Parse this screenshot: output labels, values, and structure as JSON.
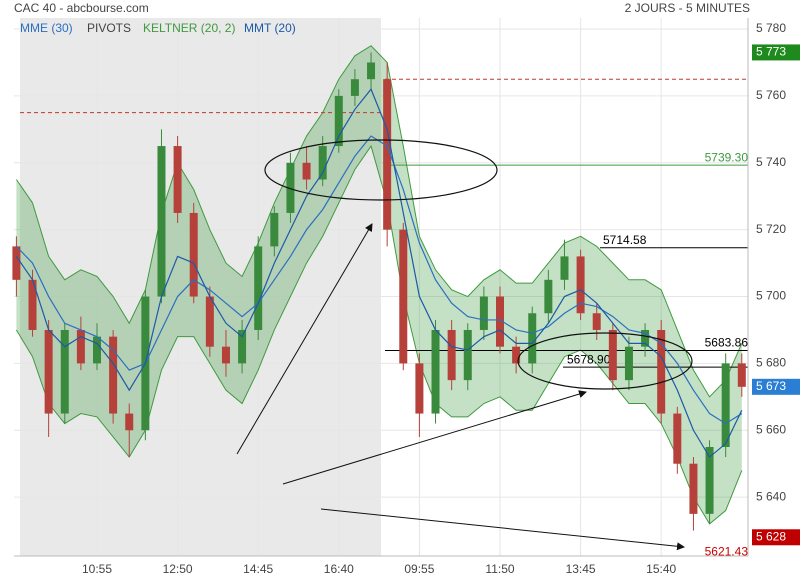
{
  "chart_data": {
    "type": "candlestick",
    "title": "CAC 40 - abcbourse.com",
    "subtitle": "2 JOURS - 5 MINUTES",
    "pivots_label": "PIVOTS",
    "categories": [
      null,
      null,
      null,
      null,
      null,
      "10:55",
      null,
      null,
      null,
      null,
      "12:50",
      null,
      null,
      null,
      null,
      "14:45",
      null,
      null,
      null,
      null,
      "16:40",
      null,
      null,
      null,
      null,
      "09:55",
      null,
      null,
      null,
      null,
      "11:50",
      null,
      null,
      null,
      null,
      "13:45",
      null,
      null,
      null,
      null,
      "15:40",
      null,
      null,
      null,
      null,
      null
    ],
    "open": [
      5715,
      5705,
      5690,
      5665,
      5690,
      5680,
      5688,
      5665,
      5660,
      5700,
      5745,
      5725,
      5700,
      5685,
      5680,
      5690,
      5715,
      5725,
      5740,
      5735,
      5745,
      5760,
      5765,
      5765,
      5720,
      5680,
      5665,
      5690,
      5675,
      5690,
      5700,
      5685,
      5680,
      5695,
      5705,
      5712,
      5695,
      5690,
      5675,
      5685,
      5690,
      5665,
      5650,
      5635,
      5655,
      5680
    ],
    "high": [
      5718,
      5708,
      5693,
      5692,
      5694,
      5692,
      5690,
      5668,
      5702,
      5750,
      5748,
      5728,
      5703,
      5690,
      5693,
      5718,
      5727,
      5743,
      5745,
      5748,
      5762,
      5768,
      5773,
      5770,
      5722,
      5683,
      5693,
      5693,
      5692,
      5703,
      5703,
      5688,
      5697,
      5708,
      5717,
      5714,
      5698,
      5692,
      5688,
      5692,
      5693,
      5667,
      5652,
      5657,
      5683,
      5683
    ],
    "low": [
      5700,
      5688,
      5658,
      5662,
      5678,
      5678,
      5662,
      5652,
      5657,
      5698,
      5722,
      5698,
      5682,
      5676,
      5677,
      5687,
      5712,
      5722,
      5732,
      5733,
      5743,
      5757,
      5762,
      5715,
      5678,
      5658,
      5662,
      5672,
      5672,
      5687,
      5683,
      5677,
      5677,
      5692,
      5702,
      5693,
      5687,
      5672,
      5672,
      5682,
      5662,
      5647,
      5630,
      5632,
      5652,
      5670
    ],
    "close": [
      5705,
      5690,
      5665,
      5690,
      5680,
      5688,
      5665,
      5660,
      5700,
      5745,
      5725,
      5700,
      5685,
      5680,
      5690,
      5715,
      5725,
      5740,
      5735,
      5745,
      5760,
      5765,
      5770,
      5720,
      5680,
      5665,
      5690,
      5675,
      5690,
      5700,
      5685,
      5680,
      5695,
      5705,
      5712,
      5695,
      5690,
      5675,
      5685,
      5690,
      5665,
      5650,
      5635,
      5655,
      5680,
      5673
    ],
    "up_color": "#3a8a3e",
    "down_color": "#b5413a",
    "series": [
      {
        "name": "MME (30)",
        "color": "#2a6fc0",
        "values": [
          5715,
          5710,
          5700,
          5692,
          5690,
          5688,
          5684,
          5678,
          5680,
          5690,
          5700,
          5705,
          5702,
          5698,
          5694,
          5698,
          5705,
          5712,
          5720,
          5726,
          5734,
          5742,
          5748,
          5745,
          5732,
          5716,
          5705,
          5698,
          5694,
          5693,
          5693,
          5690,
          5689,
          5691,
          5695,
          5698,
          5697,
          5694,
          5690,
          5689,
          5686,
          5680,
          5672,
          5665,
          5662,
          5665
        ]
      },
      {
        "name": "KELTNER (20, 2)",
        "color": "#3f9a3f",
        "upper": [
          5735,
          5728,
          5712,
          5705,
          5708,
          5706,
          5700,
          5692,
          5702,
          5725,
          5740,
          5732,
          5720,
          5710,
          5706,
          5716,
          5728,
          5738,
          5748,
          5755,
          5765,
          5772,
          5775,
          5770,
          5745,
          5718,
          5708,
          5702,
          5700,
          5705,
          5708,
          5704,
          5704,
          5710,
          5716,
          5718,
          5715,
          5710,
          5705,
          5705,
          5702,
          5690,
          5678,
          5670,
          5675,
          5686
        ],
        "lower": [
          5690,
          5682,
          5668,
          5662,
          5665,
          5664,
          5658,
          5652,
          5660,
          5678,
          5688,
          5688,
          5680,
          5672,
          5668,
          5678,
          5690,
          5700,
          5710,
          5718,
          5728,
          5738,
          5745,
          5728,
          5700,
          5680,
          5668,
          5664,
          5664,
          5668,
          5670,
          5666,
          5666,
          5674,
          5682,
          5684,
          5680,
          5674,
          5668,
          5668,
          5662,
          5652,
          5640,
          5632,
          5636,
          5648
        ]
      },
      {
        "name": "MMT (20)",
        "color": "#1b5aa8",
        "values": [
          5712,
          5705,
          5690,
          5685,
          5688,
          5686,
          5680,
          5672,
          5680,
          5700,
          5712,
          5710,
          5700,
          5692,
          5688,
          5698,
          5710,
          5720,
          5730,
          5737,
          5748,
          5756,
          5762,
          5750,
          5725,
          5700,
          5690,
          5685,
          5684,
          5688,
          5690,
          5686,
          5686,
          5692,
          5700,
          5702,
          5698,
          5692,
          5686,
          5686,
          5682,
          5672,
          5660,
          5652,
          5656,
          5666
        ]
      }
    ],
    "levels": [
      {
        "value": 5755,
        "color": "#c0392b",
        "dashed": true
      },
      {
        "value": 5765,
        "color": "#c0392b",
        "dashed": true
      },
      {
        "value": 5739.3,
        "label": "5739.30",
        "color": "#3f9a3f"
      },
      {
        "value": 5714.58,
        "label": "5714.58",
        "color": "#000000"
      },
      {
        "value": 5683.86,
        "label": "5683.86",
        "color": "#000000"
      },
      {
        "value": 5678.9,
        "label": "5678.90",
        "color": "#000000"
      },
      {
        "value": 5621.43,
        "label": "5621.43",
        "color": "#cc0000"
      }
    ],
    "price_tags": [
      {
        "value": 5773,
        "label": "5 773",
        "color": "#1e8a1e"
      },
      {
        "value": 5673,
        "label": "5 673",
        "color": "#2a7fd4"
      },
      {
        "value": 5628,
        "label": "5 628",
        "color": "#c00000"
      }
    ],
    "ylim": [
      5622.4,
      5783.3
    ],
    "yticks": [
      {
        "value": 5780,
        "label": "5 780"
      },
      {
        "value": 5760,
        "label": "5 760"
      },
      {
        "value": 5740,
        "label": "5 740"
      },
      {
        "value": 5720,
        "label": "5 720"
      },
      {
        "value": 5700,
        "label": "5 700"
      },
      {
        "value": 5680,
        "label": "5 680"
      },
      {
        "value": 5660,
        "label": "5 660"
      },
      {
        "value": 5640,
        "label": "5 640"
      }
    ],
    "grid": true
  }
}
